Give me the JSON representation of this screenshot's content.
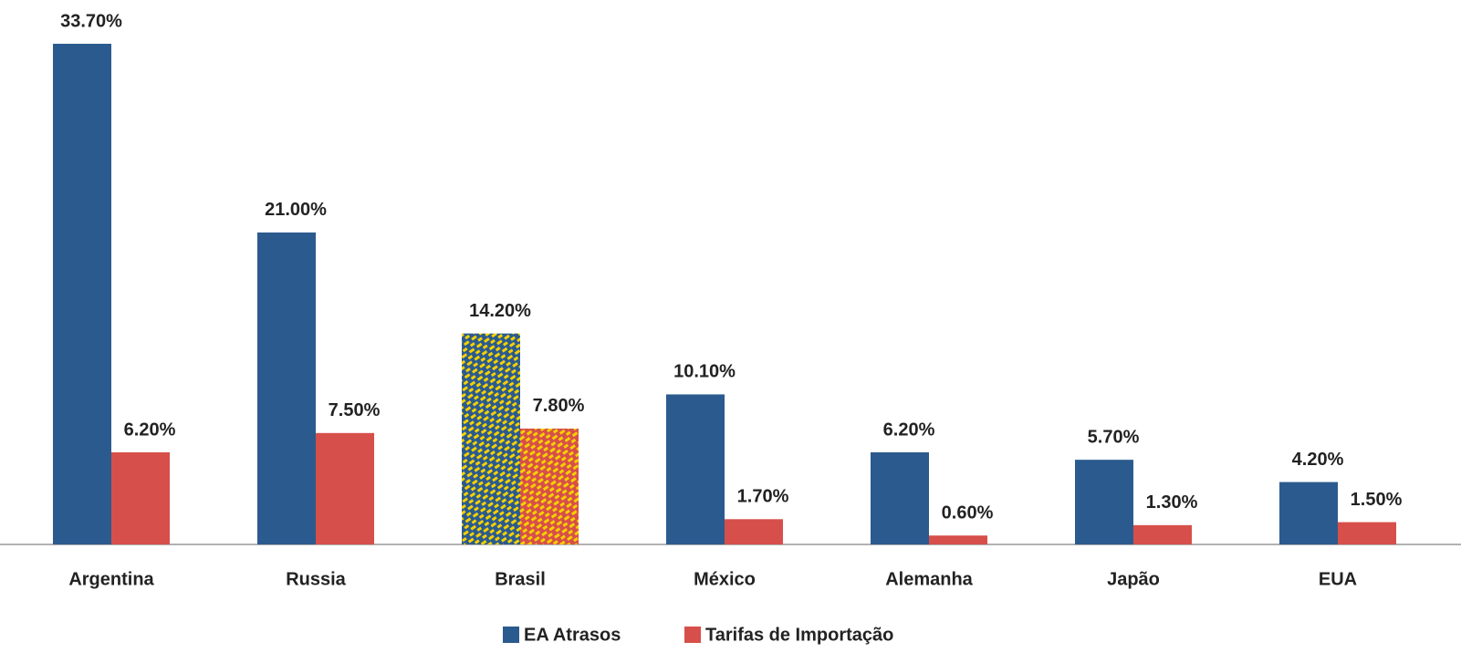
{
  "chart_data": {
    "type": "bar",
    "categories": [
      "Argentina",
      "Russia",
      "Brasil",
      "México",
      "Alemanha",
      "Japão",
      "EUA"
    ],
    "series": [
      {
        "name": "EA Atrasos",
        "color": "#2b5b8e",
        "values": [
          33.7,
          21.0,
          14.2,
          10.1,
          6.2,
          5.7,
          4.2
        ],
        "value_labels": [
          "33.70%",
          "21.00%",
          "14.20%",
          "10.10%",
          "6.20%",
          "5.70%",
          "4.20%"
        ]
      },
      {
        "name": "Tarifas de Importação",
        "color": "#d74f4a",
        "values": [
          6.2,
          7.5,
          7.8,
          1.7,
          0.6,
          1.3,
          1.5
        ],
        "value_labels": [
          "6.20%",
          "7.50%",
          "7.80%",
          "1.70%",
          "0.60%",
          "1.30%",
          "1.50%"
        ]
      }
    ],
    "highlight": "Brasil",
    "highlight_pattern_color": "#f5d000",
    "legend": "bottom"
  }
}
